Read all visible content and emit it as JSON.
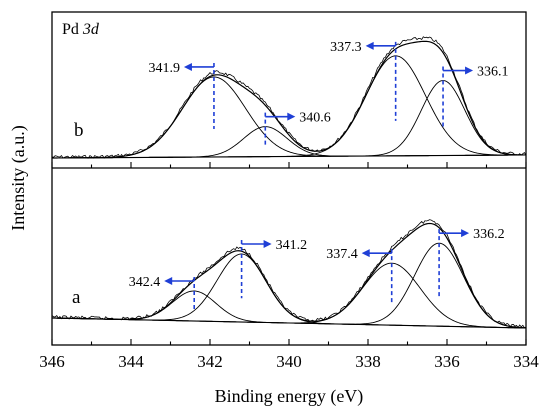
{
  "chart_data": {
    "type": "line",
    "title": "Pd 3d",
    "title_parts": {
      "element": "Pd",
      "orbital": "3d"
    },
    "xlabel": "Binding energy (eV)",
    "ylabel": "Intensity (a.u.)",
    "xlim": [
      346,
      334
    ],
    "x_reversed": true,
    "xticks": [
      346,
      344,
      342,
      340,
      338,
      336,
      334
    ],
    "xtick_labels": [
      "346",
      "344",
      "342",
      "340",
      "338",
      "336",
      "334"
    ],
    "grid": false,
    "legend": "none",
    "panels": [
      {
        "label": "b",
        "position": "top",
        "fitted_peaks_eV": [
          341.9,
          340.6,
          337.3,
          336.1
        ],
        "annotations": [
          {
            "value": 341.9,
            "text": "341.9",
            "arrow": "left"
          },
          {
            "value": 340.6,
            "text": "340.6",
            "arrow": "right"
          },
          {
            "value": 337.3,
            "text": "337.3",
            "arrow": "left"
          },
          {
            "value": 336.1,
            "text": "336.1",
            "arrow": "right"
          }
        ]
      },
      {
        "label": "a",
        "position": "bottom",
        "fitted_peaks_eV": [
          342.4,
          341.2,
          337.4,
          336.2
        ],
        "annotations": [
          {
            "value": 342.4,
            "text": "342.4",
            "arrow": "left"
          },
          {
            "value": 341.2,
            "text": "341.2",
            "arrow": "right"
          },
          {
            "value": 337.4,
            "text": "337.4",
            "arrow": "left"
          },
          {
            "value": 336.2,
            "text": "336.2",
            "arrow": "right"
          }
        ]
      }
    ],
    "colors": {
      "annotation": "#1f3fd6",
      "curves": "#000000"
    }
  }
}
